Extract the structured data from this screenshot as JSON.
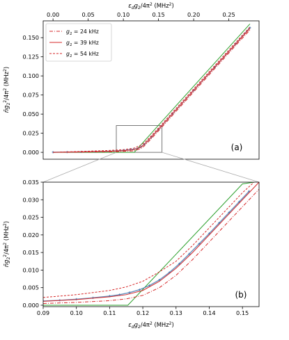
{
  "chart_data": [
    {
      "panel": "(a)",
      "type": "line",
      "xlabel": "ε_d g_2 / 4π² (MHz²)",
      "xlabel_position": "top",
      "ylabel": "n̄ g_2² / 4π² (MHz²)",
      "xlim": [
        -0.014,
        0.293
      ],
      "ylim": [
        -0.009,
        0.172
      ],
      "xticks": [
        "0.00",
        "0.05",
        "0.10",
        "0.15",
        "0.20",
        "0.25"
      ],
      "xtick_values": [
        0,
        0.05,
        0.1,
        0.15,
        0.2,
        0.25
      ],
      "yticks": [
        "0.000",
        "0.025",
        "0.050",
        "0.075",
        "0.100",
        "0.125",
        "0.150"
      ],
      "ytick_values": [
        0,
        0.025,
        0.05,
        0.075,
        0.1,
        0.125,
        0.15
      ],
      "legend_position": "top-left",
      "inset_box": {
        "x": [
          0.09,
          0.155
        ],
        "y": [
          0,
          0.035
        ]
      },
      "series": [
        {
          "name": "g_2 = 24 kHz",
          "style": "dashdot",
          "color": "#d62728",
          "x": [
            0,
            0.04,
            0.08,
            0.1,
            0.115,
            0.125,
            0.13,
            0.14,
            0.15,
            0.17,
            0.2,
            0.23,
            0.26,
            0.28
          ],
          "y": [
            0,
            0.0003,
            0.0008,
            0.0013,
            0.002,
            0.005,
            0.0085,
            0.018,
            0.028,
            0.0485,
            0.079,
            0.1095,
            0.14,
            0.16
          ]
        },
        {
          "name": "g_2 = 39 kHz",
          "style": "solid",
          "color": "#d62728",
          "x": [
            0,
            0.04,
            0.08,
            0.1,
            0.115,
            0.125,
            0.13,
            0.14,
            0.15,
            0.17,
            0.2,
            0.23,
            0.26,
            0.28
          ],
          "y": [
            0,
            0.0006,
            0.0014,
            0.0022,
            0.0035,
            0.0068,
            0.0105,
            0.02,
            0.03,
            0.0505,
            0.081,
            0.1115,
            0.142,
            0.162
          ]
        },
        {
          "name": "g_2 = 54 kHz",
          "style": "dashed",
          "color": "#d62728",
          "x": [
            0,
            0.04,
            0.08,
            0.1,
            0.115,
            0.125,
            0.13,
            0.14,
            0.15,
            0.17,
            0.2,
            0.23,
            0.26,
            0.28
          ],
          "y": [
            0,
            0.0012,
            0.0025,
            0.0035,
            0.0055,
            0.0095,
            0.0125,
            0.022,
            0.032,
            0.0525,
            0.083,
            0.1135,
            0.144,
            0.164
          ]
        },
        {
          "name": "",
          "style": "solid",
          "color": "#2ca02c",
          "x": [
            0,
            0.1155,
            0.15,
            0.28
          ],
          "y": [
            0,
            0,
            0.0355,
            0.168
          ]
        },
        {
          "name": "",
          "style": "markers",
          "color": "#4a7fb5",
          "x": [
            0,
            0.02,
            0.04,
            0.06,
            0.08,
            0.1,
            0.11,
            0.12,
            0.125,
            0.13,
            0.14,
            0.15,
            0.17,
            0.2,
            0.23,
            0.26,
            0.28
          ],
          "y": [
            0.0002,
            0.0004,
            0.0006,
            0.0009,
            0.0014,
            0.0025,
            0.0035,
            0.005,
            0.007,
            0.0105,
            0.02,
            0.03,
            0.0505,
            0.081,
            0.1115,
            0.142,
            0.163
          ]
        }
      ]
    },
    {
      "panel": "(b)",
      "type": "line",
      "xlabel": "ε_d g_2 / 4π² (MHz²)",
      "ylabel": "n̄ g_2² / 4π² (MHz²)",
      "xlim": [
        0.09,
        0.155
      ],
      "ylim": [
        -0.0004,
        0.035
      ],
      "xticks": [
        "0.09",
        "0.10",
        "0.11",
        "0.12",
        "0.13",
        "0.14",
        "0.15"
      ],
      "xtick_values": [
        0.09,
        0.1,
        0.11,
        0.12,
        0.13,
        0.14,
        0.15
      ],
      "yticks": [
        "0.000",
        "0.005",
        "0.010",
        "0.015",
        "0.020",
        "0.025",
        "0.030",
        "0.035"
      ],
      "ytick_values": [
        0,
        0.005,
        0.01,
        0.015,
        0.02,
        0.025,
        0.03,
        0.035
      ],
      "series": [
        {
          "name": "g_2 = 24 kHz",
          "style": "dashdot",
          "color": "#d62728",
          "x": [
            0.09,
            0.1,
            0.11,
            0.115,
            0.12,
            0.125,
            0.13,
            0.135,
            0.14,
            0.145,
            0.15,
            0.155
          ],
          "y": [
            0.0005,
            0.0008,
            0.0013,
            0.0018,
            0.0028,
            0.005,
            0.0085,
            0.013,
            0.018,
            0.023,
            0.028,
            0.033
          ]
        },
        {
          "name": "g_2 = 39 kHz",
          "style": "solid",
          "color": "#d62728",
          "x": [
            0.09,
            0.1,
            0.11,
            0.115,
            0.12,
            0.125,
            0.13,
            0.135,
            0.14,
            0.145,
            0.15,
            0.155
          ],
          "y": [
            0.0011,
            0.0016,
            0.0024,
            0.003,
            0.0042,
            0.0068,
            0.0105,
            0.015,
            0.02,
            0.025,
            0.03,
            0.035
          ]
        },
        {
          "name": "g_2 = 54 kHz",
          "style": "dashed",
          "color": "#d62728",
          "x": [
            0.09,
            0.1,
            0.11,
            0.115,
            0.12,
            0.125,
            0.13,
            0.135,
            0.14,
            0.145,
            0.15,
            0.1535
          ],
          "y": [
            0.0022,
            0.003,
            0.0042,
            0.0052,
            0.0068,
            0.0095,
            0.0125,
            0.017,
            0.022,
            0.027,
            0.032,
            0.035
          ]
        },
        {
          "name": "",
          "style": "solid",
          "color": "#2ca02c",
          "x": [
            0.09,
            0.1155,
            0.15,
            0.1535
          ],
          "y": [
            0,
            0,
            0.0345,
            0.035
          ]
        },
        {
          "name": "",
          "style": "markers",
          "color": "#4a7fb5",
          "x": [
            0.09,
            0.095,
            0.1,
            0.105,
            0.11,
            0.113,
            0.116,
            0.119,
            0.122,
            0.125,
            0.128,
            0.131,
            0.134,
            0.137,
            0.14,
            0.143,
            0.146,
            0.149,
            0.152
          ],
          "y": [
            0.0012,
            0.0014,
            0.0017,
            0.0021,
            0.0026,
            0.003,
            0.0036,
            0.0044,
            0.0056,
            0.0072,
            0.0093,
            0.0118,
            0.0146,
            0.0175,
            0.0204,
            0.0234,
            0.0264,
            0.0294,
            0.0324
          ]
        }
      ]
    }
  ]
}
